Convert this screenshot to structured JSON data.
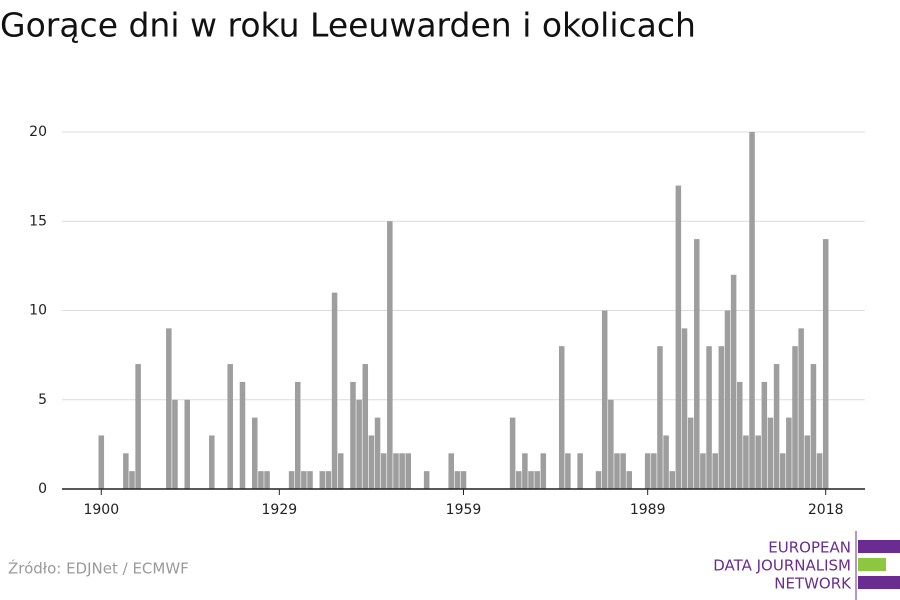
{
  "chart_data": {
    "type": "bar",
    "title": "Gorące dni w roku Leeuwarden i okolicach",
    "source": "Źródło: EDJNet / ECMWF",
    "logo": [
      "EUROPEAN",
      "DATA JOURNALISM",
      "NETWORK"
    ],
    "color": "#9e9e9e",
    "grid": true,
    "x": [
      1900,
      1901,
      1902,
      1903,
      1904,
      1905,
      1906,
      1907,
      1908,
      1909,
      1910,
      1911,
      1912,
      1913,
      1914,
      1915,
      1916,
      1917,
      1918,
      1919,
      1920,
      1921,
      1922,
      1923,
      1924,
      1925,
      1926,
      1927,
      1928,
      1929,
      1930,
      1931,
      1932,
      1933,
      1934,
      1935,
      1936,
      1937,
      1938,
      1939,
      1940,
      1941,
      1942,
      1943,
      1944,
      1945,
      1946,
      1947,
      1948,
      1949,
      1950,
      1951,
      1952,
      1953,
      1954,
      1955,
      1956,
      1957,
      1958,
      1959,
      1960,
      1961,
      1962,
      1963,
      1964,
      1965,
      1966,
      1967,
      1968,
      1969,
      1970,
      1971,
      1972,
      1973,
      1974,
      1975,
      1976,
      1977,
      1978,
      1979,
      1980,
      1981,
      1982,
      1983,
      1984,
      1985,
      1986,
      1987,
      1988,
      1989,
      1990,
      1991,
      1992,
      1993,
      1994,
      1995,
      1996,
      1997,
      1998,
      1999,
      2000,
      2001,
      2002,
      2003,
      2004,
      2005,
      2006,
      2007,
      2008,
      2009,
      2010,
      2011,
      2012,
      2013,
      2014,
      2015,
      2016,
      2017,
      2018
    ],
    "values": [
      3,
      0,
      0,
      0,
      2,
      1,
      7,
      0,
      0,
      0,
      0,
      9,
      5,
      0,
      5,
      0,
      0,
      0,
      3,
      0,
      0,
      7,
      0,
      6,
      0,
      4,
      1,
      1,
      0,
      0,
      0,
      1,
      6,
      1,
      1,
      0,
      1,
      1,
      11,
      2,
      0,
      6,
      5,
      7,
      3,
      4,
      2,
      15,
      2,
      2,
      2,
      0,
      0,
      1,
      0,
      0,
      0,
      2,
      1,
      1,
      0,
      0,
      0,
      0,
      0,
      0,
      0,
      4,
      1,
      2,
      1,
      1,
      2,
      0,
      0,
      8,
      2,
      0,
      2,
      0,
      0,
      1,
      10,
      5,
      2,
      2,
      1,
      0,
      0,
      2,
      2,
      8,
      3,
      1,
      17,
      9,
      4,
      14,
      2,
      8,
      2,
      8,
      10,
      12,
      6,
      3,
      20,
      3,
      6,
      4,
      7,
      2,
      4,
      8,
      9,
      3,
      7,
      2,
      14
    ],
    "xlim": [
      1893.6,
      2024.4
    ],
    "xticks": [
      1900,
      1929,
      1959,
      1989,
      2018
    ],
    "ylim": [
      0,
      20
    ],
    "yticks": [
      0,
      5,
      10,
      15,
      20
    ]
  }
}
